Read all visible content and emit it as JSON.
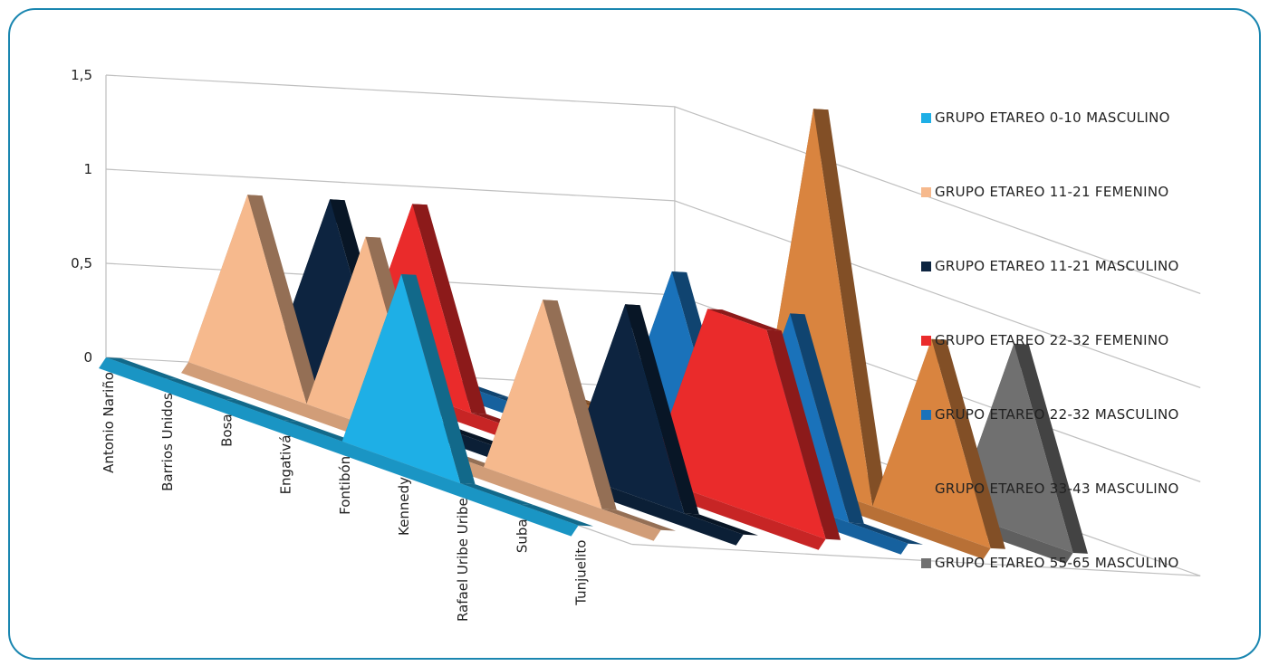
{
  "chart_data": {
    "type": "area",
    "variant": "3d-area",
    "categories": [
      "Antonio Nariño",
      "Barrios Unidos",
      "Bosa",
      "Engativá",
      "Fontibón",
      "Kennedy",
      "Rafael Uribe Uribe",
      "Suba",
      "Tunjuelito"
    ],
    "y_ticks": [
      "0",
      "0,5",
      "1",
      "1,5"
    ],
    "ylim": [
      0,
      1.5
    ],
    "grid": true,
    "legend_position": "right",
    "series": [
      {
        "name": "GRUPO ETAREO  0-10 MASCULINO",
        "color": "#1eafe6",
        "values": [
          0,
          0,
          0,
          0,
          0,
          1,
          0,
          0,
          0
        ]
      },
      {
        "name": "GRUPO ETAREO  11-21 FEMENINO",
        "color": "#f6b98d",
        "values": [
          0,
          1,
          0,
          1,
          0,
          0,
          1,
          0,
          0
        ]
      },
      {
        "name": "GRUPO ETAREO  11-21 MASCULINO",
        "color": "#0d2440",
        "values": [
          0,
          1,
          0,
          0,
          0,
          0,
          1,
          0,
          0
        ]
      },
      {
        "name": "GRUPO ETAREO  22-32 FEMENINO",
        "color": "#ea2b2b",
        "values": [
          0,
          1,
          0,
          0,
          0,
          0,
          1,
          1,
          0
        ]
      },
      {
        "name": "GRUPO ETAREO  22-32 MASCULINO",
        "color": "#1a72ba",
        "values": [
          0,
          0,
          0,
          0,
          1,
          0,
          1,
          0,
          0
        ]
      },
      {
        "name": "GRUPO ETAREO  33-43 MASCULINO",
        "color": "#d9843f",
        "values": [
          0,
          0,
          0,
          0,
          0,
          2,
          0,
          1,
          0
        ]
      },
      {
        "name": "GRUPO ETAREO  55-65 MASCULINO",
        "color": "#707070",
        "values": [
          0,
          0,
          0,
          0,
          0,
          0,
          0,
          1,
          0
        ]
      }
    ]
  }
}
